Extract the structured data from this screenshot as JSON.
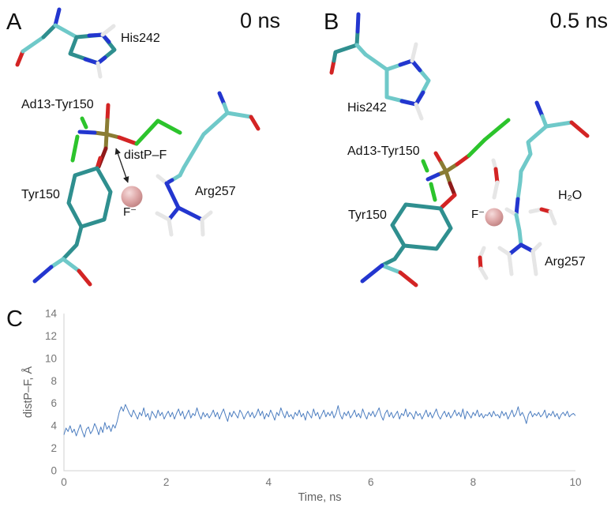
{
  "panel_a": {
    "label": "A",
    "timestamp": "0 ns",
    "residues": {
      "his242": "His242",
      "ad13_tyr150": "Ad13-Tyr150",
      "tyr150": "Tyr150",
      "arg257": "Arg257"
    },
    "distance_label": "distP–F",
    "fluoride_label": "F⁻"
  },
  "panel_b": {
    "label": "B",
    "timestamp": "0.5 ns",
    "residues": {
      "his242": "His242",
      "ad13_tyr150": "Ad13-Tyr150",
      "tyr150": "Tyr150",
      "arg257": "Arg257"
    },
    "fluoride_label": "F⁻",
    "water_label": "H₂O"
  },
  "panel_c": {
    "label": "C"
  },
  "chart_data": {
    "type": "line",
    "title": "",
    "xlabel": "Time, ns",
    "ylabel": "distP–F, Å",
    "xlim": [
      0,
      10
    ],
    "ylim": [
      0,
      14
    ],
    "xticks": [
      0,
      2,
      4,
      6,
      8,
      10
    ],
    "yticks": [
      0,
      2,
      4,
      6,
      8,
      10,
      12,
      14
    ],
    "grid": false,
    "legend": "none",
    "line_color": "#4d7ec0",
    "axis_color": "#d9d9d9",
    "tick_label_color": "#757575",
    "series": [
      {
        "name": "distP–F",
        "x_start": 0,
        "x_step": 0.04,
        "y": [
          3.2,
          3.8,
          3.5,
          4.0,
          3.4,
          3.7,
          3.1,
          3.6,
          4.1,
          3.5,
          3.0,
          3.7,
          3.9,
          3.3,
          3.6,
          4.2,
          3.8,
          3.2,
          3.9,
          3.4,
          4.3,
          3.7,
          4.0,
          3.5,
          4.1,
          3.8,
          4.4,
          5.2,
          5.7,
          5.3,
          5.9,
          5.5,
          5.1,
          4.8,
          5.4,
          5.0,
          4.6,
          5.2,
          4.9,
          5.6,
          4.8,
          5.1,
          4.5,
          5.3,
          5.0,
          4.7,
          5.4,
          4.9,
          5.2,
          4.6,
          5.0,
          5.3,
          4.8,
          5.2,
          4.6,
          5.1,
          5.5,
          4.9,
          5.3,
          4.6,
          5.0,
          5.4,
          4.7,
          5.1,
          4.9,
          5.6,
          5.0,
          4.6,
          5.2,
          4.8,
          5.1,
          4.7,
          5.0,
          5.4,
          4.8,
          5.2,
          4.6,
          5.1,
          5.5,
          4.9,
          4.4,
          5.2,
          4.8,
          5.3,
          5.0,
          4.7,
          5.4,
          5.1,
          4.6,
          5.0,
          5.3,
          4.8,
          5.2,
          4.7,
          5.0,
          5.5,
          4.9,
          5.3,
          4.6,
          5.1,
          4.8,
          5.4,
          5.0,
          4.5,
          5.2,
          4.9,
          5.6,
          5.1,
          4.7,
          5.3,
          4.8,
          5.0,
          4.6,
          5.2,
          4.9,
          5.4,
          4.8,
          5.1,
          4.5,
          5.3,
          5.0,
          4.7,
          5.5,
          4.9,
          5.2,
          4.6,
          5.0,
          5.4,
          4.8,
          5.2,
          4.9,
          5.3,
          4.7,
          5.1,
          5.8,
          5.0,
          4.6,
          5.2,
          4.9,
          5.3,
          4.7,
          5.0,
          5.4,
          4.8,
          5.1,
          4.7,
          5.5,
          5.0,
          4.6,
          5.2,
          4.9,
          5.3,
          4.8,
          5.2,
          5.6,
          4.9,
          4.5,
          5.1,
          5.4,
          4.8,
          5.2,
          4.7,
          5.0,
          5.3,
          4.6,
          5.1,
          4.9,
          5.5,
          4.8,
          5.2,
          5.0,
          4.6,
          5.3,
          4.9,
          5.1,
          4.6,
          5.0,
          5.4,
          4.8,
          5.2,
          4.7,
          5.1,
          5.5,
          4.9,
          4.6,
          5.0,
          5.3,
          4.8,
          5.2,
          4.7,
          5.0,
          5.4,
          4.9,
          5.2,
          4.8,
          5.5,
          4.6,
          5.3,
          5.0,
          4.7,
          5.2,
          4.9,
          5.4,
          4.8,
          5.1,
          4.7,
          5.0,
          4.9,
          5.2,
          4.8,
          5.3,
          4.9,
          5.0,
          4.7,
          5.3,
          4.9,
          5.2,
          4.6,
          5.0,
          5.4,
          4.8,
          5.1,
          5.7,
          4.9,
          5.2,
          4.8,
          4.2,
          5.0,
          5.3,
          4.8,
          5.1,
          4.9,
          5.2,
          4.8,
          5.0,
          5.4,
          4.7,
          5.1,
          4.9,
          5.3,
          4.8,
          5.1,
          4.6,
          5.0,
          5.2,
          4.9,
          5.3,
          4.8,
          5.0,
          5.1,
          4.9
        ]
      }
    ]
  },
  "colors": {
    "carbon_cyan": "#6fc9c9",
    "carbon_teal": "#2f8f8f",
    "nitrogen_blue": "#2336cf",
    "oxygen_red": "#d32424",
    "oxygen_dark": "#8f1a1a",
    "hydrogen_white": "#e6e6e6",
    "fluorine_green": "#2cc42c",
    "phosphorus_tan": "#8a7c33",
    "fluoride_pink": "#d89898",
    "tick_color": "#757575"
  }
}
